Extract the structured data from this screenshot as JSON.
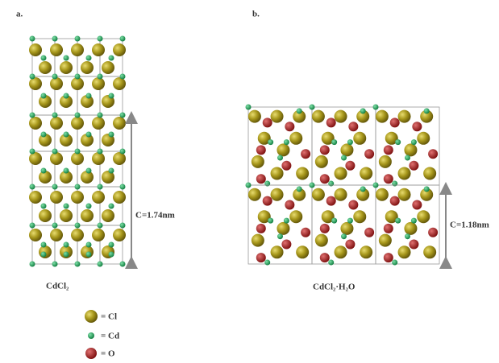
{
  "panels": [
    {
      "label": "a.",
      "caption": "CdCl₂",
      "dimension": "C=1.74nm"
    },
    {
      "label": "b.",
      "caption": "CdCl₂·H₂O",
      "dimension": "C=1.18nm"
    }
  ],
  "legend": [
    {
      "label": "= Cl"
    },
    {
      "label": "= Cd"
    },
    {
      "label": "= O"
    }
  ]
}
